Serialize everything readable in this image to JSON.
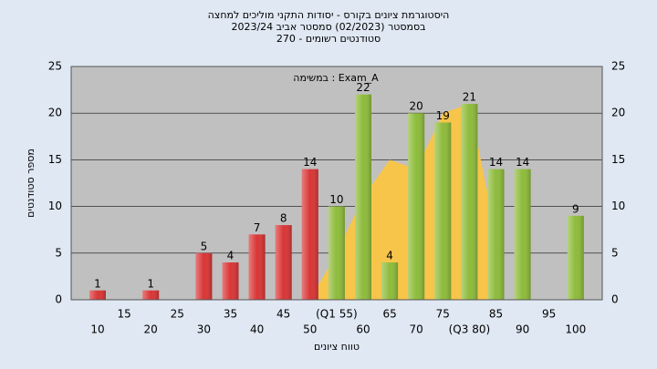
{
  "chart_data": {
    "type": "bar",
    "title": "היסטוגרמת ציונים בקורס - יסודות התקני מוליכים למחצה",
    "subtitle": "בסמסטר  (02/2023)  סמסטר אביב 2023/24",
    "subtitle2": "סטודנטים רשומים - 270",
    "annotation": "במשימה : Exam_A",
    "ylabel": "מספר סטודנטים",
    "xlabel": "טווח ציונים",
    "categories": [
      "10",
      "15",
      "20",
      "25",
      "30",
      "35",
      "40",
      "45",
      "50",
      "(Q1 55)",
      "60",
      "65",
      "70",
      "75",
      "(Q3 80)",
      "85",
      "90",
      "95",
      "100"
    ],
    "values": [
      1,
      null,
      1,
      null,
      5,
      4,
      7,
      8,
      14,
      10,
      22,
      4,
      20,
      19,
      21,
      14,
      14,
      null,
      9
    ],
    "colors": [
      "#d93535",
      "#d93535",
      "#d93535",
      "#d93535",
      "#d93535",
      "#d93535",
      "#d93535",
      "#d93535",
      "#d93535",
      "#8dbb3a",
      "#8dbb3a",
      "#8dbb3a",
      "#8dbb3a",
      "#8dbb3a",
      "#8dbb3a",
      "#8dbb3a",
      "#8dbb3a",
      "#8dbb3a",
      "#8dbb3a"
    ],
    "area": {
      "color": "#f7c54a",
      "values": [
        null,
        null,
        null,
        null,
        null,
        null,
        null,
        null,
        0,
        5,
        11,
        15,
        14,
        20,
        21,
        7,
        null,
        null,
        null
      ]
    },
    "ylim": [
      0,
      25
    ],
    "yticks": [
      0,
      5,
      10,
      15,
      20,
      25
    ],
    "grid": true
  }
}
